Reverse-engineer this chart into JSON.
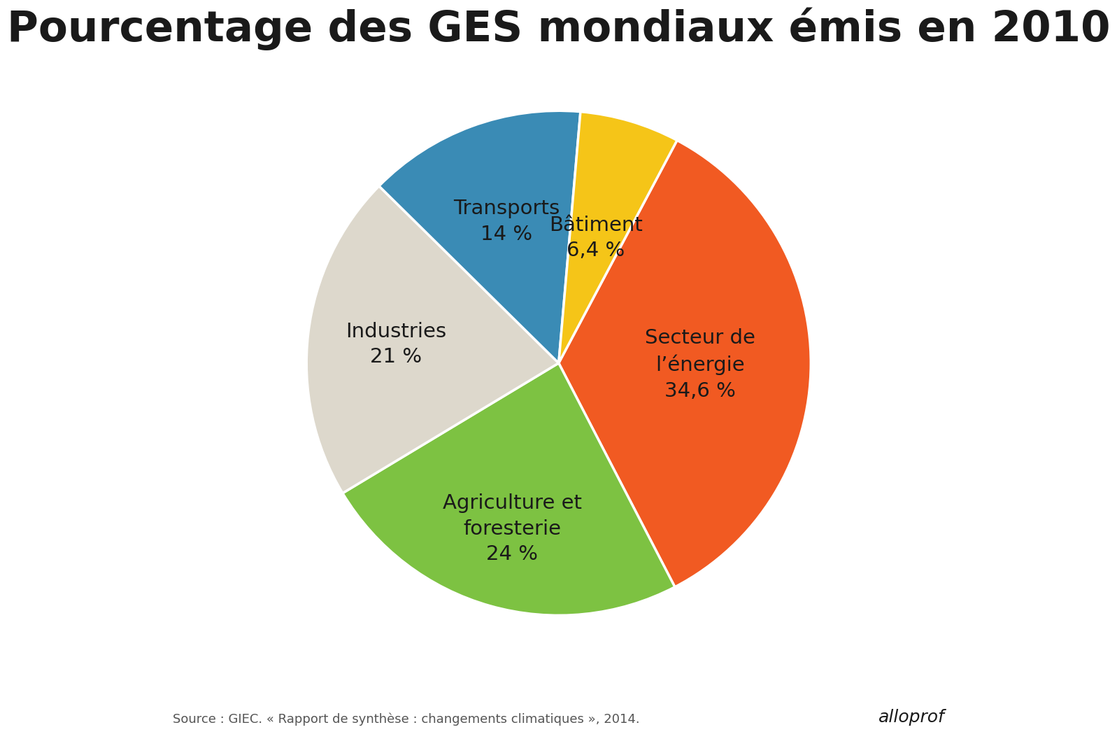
{
  "title": "Pourcentage des GES mondiaux\némis en 2010",
  "title_line1": "Pourcentage des GES mondiaux émis en 2010",
  "slices": [
    {
      "label": "Secteur de\nl’énergie\n34,6 %",
      "value": 34.6,
      "color": "#F15A22"
    },
    {
      "label": "Agriculture et\nforesterie\n24 %",
      "value": 24.0,
      "color": "#7DC242"
    },
    {
      "label": "Industries\n21 %",
      "value": 21.0,
      "color": "#DDD8CC"
    },
    {
      "label": "Transports\n14 %",
      "value": 14.0,
      "color": "#3A8BB5"
    },
    {
      "label": "Bâtiment\n6,4 %",
      "value": 6.4,
      "color": "#F5C518"
    }
  ],
  "source_text": "Source : GIEC. « Rapport de synthèse : changements climatiques », 2014.",
  "brand_text": "alloprof",
  "title_fontsize": 44,
  "label_fontsize": 21,
  "source_fontsize": 13,
  "brand_fontsize": 18,
  "background_color": "#FFFFFF",
  "text_color": "#1A1A1A",
  "start_angle": 62,
  "label_radii": [
    0.56,
    0.68,
    0.65,
    0.6,
    0.52
  ]
}
